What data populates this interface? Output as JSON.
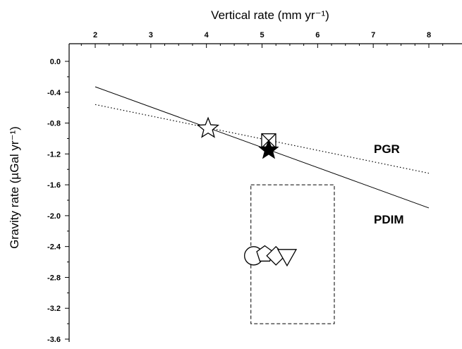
{
  "chart_data": {
    "type": "scatter",
    "xlabel": "Vertical rate (mm yr⁻¹)",
    "ylabel": "Gravity rate (µGal yr⁻¹)",
    "xlim": [
      1.6,
      8.4
    ],
    "ylim": [
      -3.6,
      0.0
    ],
    "x_ticks": [
      "2",
      "3",
      "4",
      "5",
      "6",
      "7",
      "8"
    ],
    "y_ticks": [
      "0.0",
      "-0.4",
      "-0.8",
      "-1.2",
      "-1.6",
      "-2.0",
      "-2.4",
      "-2.8",
      "-3.2",
      "-3.6"
    ],
    "x_axis_position": "top",
    "grid": false,
    "lines": [
      {
        "label": "PDIM",
        "style": "solid",
        "points": [
          [
            2.0,
            -0.33
          ],
          [
            8.0,
            -1.9
          ]
        ]
      },
      {
        "label": "PGR",
        "style": "dotted",
        "points": [
          [
            2.0,
            -0.56
          ],
          [
            8.0,
            -1.45
          ]
        ]
      }
    ],
    "points": [
      {
        "marker": "open-star",
        "x": 4.03,
        "y": -0.87
      },
      {
        "marker": "boxed-x",
        "x": 5.12,
        "y": -1.03
      },
      {
        "marker": "filled-star",
        "x": 5.12,
        "y": -1.15
      },
      {
        "marker": "circle",
        "x": 4.85,
        "y": -2.52
      },
      {
        "marker": "pentagon",
        "x": 5.05,
        "y": -2.5
      },
      {
        "marker": "diamond",
        "x": 5.25,
        "y": -2.52
      },
      {
        "marker": "triangle-down",
        "x": 5.45,
        "y": -2.52
      }
    ],
    "box": {
      "style": "dashed",
      "x": [
        4.8,
        6.3
      ],
      "y": [
        -1.6,
        -3.4
      ]
    }
  }
}
